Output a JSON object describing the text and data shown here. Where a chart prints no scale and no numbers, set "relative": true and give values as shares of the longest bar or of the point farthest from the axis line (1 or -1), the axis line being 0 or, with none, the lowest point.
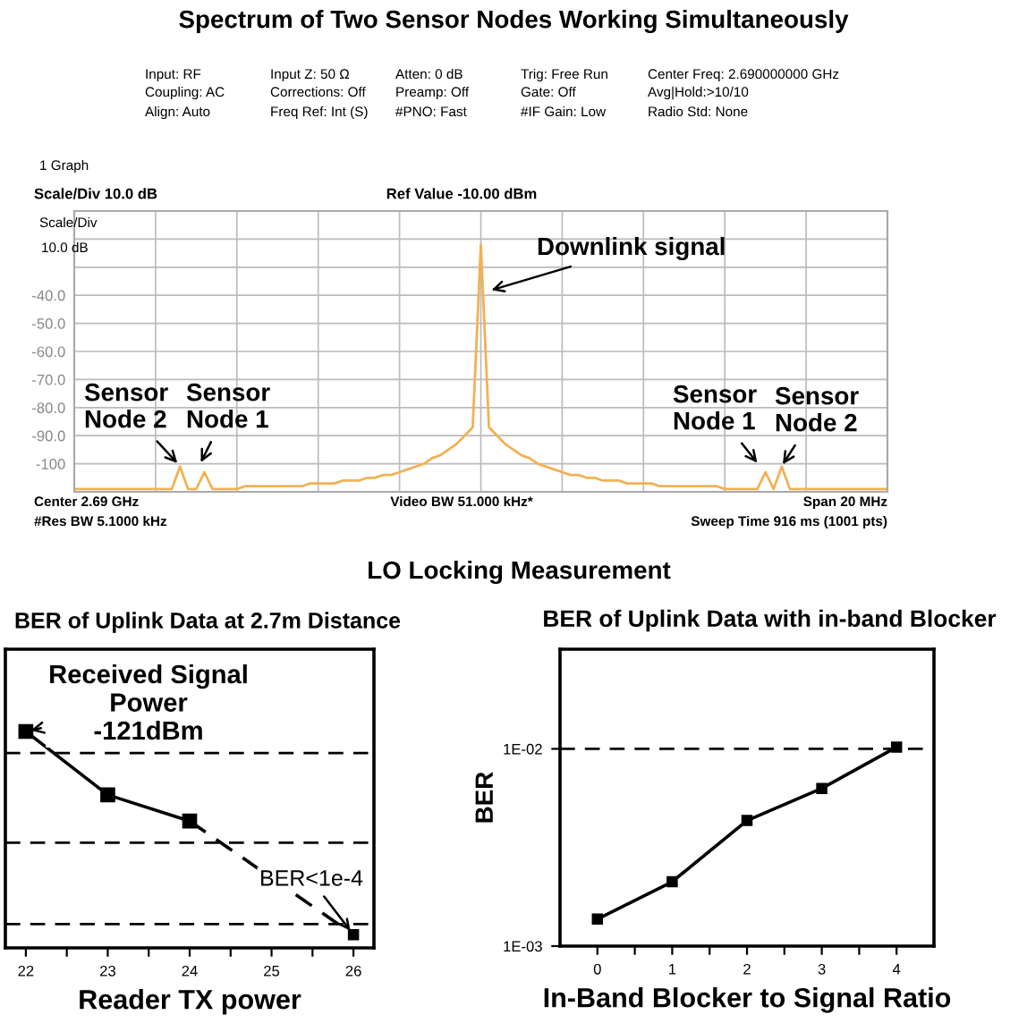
{
  "chart_data": [
    {
      "type": "line",
      "title": "Spectrum of Two Sensor Nodes Working Simultaneously",
      "categories": [
        null,
        null,
        null,
        null,
        null,
        null,
        null,
        null,
        null,
        null,
        null,
        null,
        null,
        null,
        null,
        null,
        null,
        null,
        null,
        null,
        null,
        null,
        null,
        null,
        null,
        null,
        null,
        null,
        null,
        null,
        null,
        null,
        null,
        null,
        null,
        null,
        null,
        null,
        null,
        null,
        null,
        null,
        null,
        null,
        null,
        null,
        null,
        null,
        null,
        null,
        null,
        null,
        null,
        null,
        null,
        null,
        null,
        null,
        null,
        null,
        null,
        null,
        null,
        null,
        null,
        null,
        null,
        null,
        null,
        null,
        null,
        null,
        null,
        null,
        null,
        null,
        null,
        null,
        null,
        null,
        null,
        null,
        null,
        null,
        null,
        null,
        null,
        null,
        null,
        null,
        null,
        null,
        null,
        null,
        null,
        null,
        null,
        null,
        null,
        null,
        null
      ],
      "series": [
        {
          "color": "#f2b154",
          "values": [
            -109,
            -109,
            -109,
            -109,
            -109,
            -109,
            -109,
            -109,
            -109,
            -109,
            -109,
            -109,
            -109,
            -101,
            -109,
            -109,
            -103,
            -109,
            -109,
            -109,
            -109,
            -108,
            -108,
            -108,
            -108,
            -108,
            -108,
            -108,
            -108,
            -107,
            -107,
            -107,
            -107,
            -106,
            -106,
            -106,
            -105,
            -105,
            -104,
            -104,
            -103,
            -102,
            -101,
            -100,
            -98,
            -97,
            -95,
            -93,
            -90,
            -87,
            -22,
            -87,
            -90,
            -93,
            -95,
            -97,
            -98,
            -100,
            -101,
            -102,
            -103,
            -104,
            -104,
            -105,
            -105,
            -106,
            -106,
            -106,
            -107,
            -107,
            -107,
            -107,
            -108,
            -108,
            -108,
            -108,
            -108,
            -108,
            -108,
            -108,
            -109,
            -109,
            -109,
            -109,
            -109,
            -103,
            -109,
            -101,
            -109,
            -109,
            -109,
            -109,
            -109,
            -109,
            -109,
            -109,
            -109,
            -109,
            -109,
            -109,
            -109
          ]
        }
      ],
      "ylim": [
        -110,
        -10
      ],
      "yticks": [
        {
          "value": -20,
          "label": null
        },
        {
          "value": -30,
          "label": null
        },
        {
          "value": -40,
          "label": "-40.0"
        },
        {
          "value": -50,
          "label": "-50.0"
        },
        {
          "value": -60,
          "label": "-60.0"
        },
        {
          "value": -70,
          "label": "-70.0"
        },
        {
          "value": -80,
          "label": "-80.0"
        },
        {
          "value": -90,
          "label": "-90.0"
        },
        {
          "value": -100,
          "label": "-100"
        }
      ],
      "grid": true,
      "tick_labels": "y",
      "marker": "none",
      "line_style": "solid",
      "annotations": [
        "Input: RF",
        "Coupling: AC",
        "Align: Auto",
        "Input Z: 50 Ω",
        "Corrections: Off",
        "Freq Ref: Int (S)",
        "Atten: 0 dB",
        "Preamp: Off",
        "#PNO: Fast",
        "Trig: Free Run",
        "Gate: Off",
        "#IF Gain: Low",
        "Center Freq: 2.690000000 GHz",
        "Avg|Hold:>10/10",
        "Radio Std: None",
        "1 Graph",
        "Scale/Div 10.0 dB",
        "Ref Value -10.00 dBm",
        "Scale/Div",
        "10.0 dB",
        "Center 2.69 GHz",
        "#Res BW 5.1000 kHz",
        "Video BW 51.000 kHz*",
        "Span 20 MHz",
        "Sweep Time 916 ms (1001 pts)",
        "Downlink signal",
        "Sensor\nNode 2",
        "Sensor\nNode 1",
        "Sensor\nNode 1",
        "Sensor\nNode 2"
      ]
    },
    {
      "type": "line",
      "title": "BER of Uplink Data at 2.7m Distance",
      "xlabel": "Reader TX power",
      "relative": true,
      "series": [
        {
          "color": "#000000",
          "x": [
            22,
            23,
            24
          ],
          "values": [
            1,
            0.707,
            0.586
          ],
          "line_style": "solid"
        },
        {
          "color": "#000000",
          "x": [
            24,
            26
          ],
          "values": [
            0.586,
            0.061
          ],
          "line_style": "dashed"
        }
      ],
      "xlim": [
        21.75,
        26.25
      ],
      "xticks": [
        22,
        {
          "value": 22.5,
          "label": null
        },
        23,
        {
          "value": 23.5,
          "label": null
        },
        24,
        {
          "value": 24.5,
          "label": null
        },
        25,
        {
          "value": 25.5,
          "label": null
        },
        26
      ],
      "marker": "square",
      "tick_labels": "x",
      "ref_lines": [
        {
          "axis": "y",
          "value": 0.9,
          "line_style": "dashed",
          "color": "#000000"
        },
        {
          "axis": "y",
          "value": 0.486,
          "line_style": "dashed",
          "color": "#000000"
        },
        {
          "axis": "y",
          "value": 0.11,
          "line_style": "dashed",
          "color": "#000000"
        }
      ],
      "annotations": [
        "LO Locking Measurement",
        {
          "text": "Received Signal\nPower\n-121dBm",
          "x": 22,
          "y": 1
        },
        {
          "text": "BER<1e-4",
          "x": 26,
          "y": 0.061
        }
      ]
    },
    {
      "type": "line",
      "title": "BER of Uplink Data with in-band Blocker",
      "xlabel": "In-Band Blocker to Signal Ratio",
      "ylabel": "BER",
      "log": "y",
      "series": [
        {
          "color": "#000000",
          "x": [
            0,
            1,
            2,
            3,
            4
          ],
          "values": [
            0.00137,
            0.00212,
            0.00433,
            0.0063,
            0.0102
          ],
          "line_style": "solid"
        }
      ],
      "xlim": [
        -0.5,
        4.5
      ],
      "xticks": [
        0,
        {
          "value": 0.5,
          "label": null
        },
        1,
        {
          "value": 1.5,
          "label": null
        },
        2,
        {
          "value": 2.5,
          "label": null
        },
        3,
        {
          "value": 3.5,
          "label": null
        },
        4
      ],
      "ylim": [
        0.001,
        0.032
      ],
      "yticks": [
        {
          "value": 0.001,
          "label": "1E-03"
        },
        {
          "value": 0.01,
          "label": "1E-02"
        }
      ],
      "marker": "square",
      "ref_lines": [
        {
          "axis": "y",
          "value": 0.01,
          "line_style": "dashed",
          "color": "#000000"
        }
      ]
    }
  ]
}
